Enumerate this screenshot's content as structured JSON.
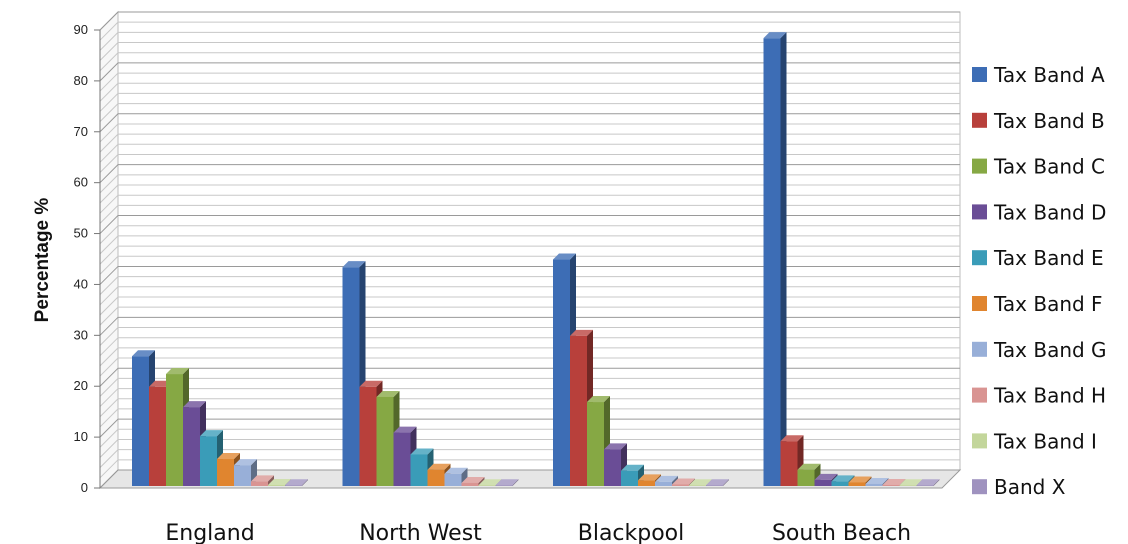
{
  "chart_data": {
    "type": "bar",
    "ylabel": "Percentage %",
    "ylim": [
      0,
      90
    ],
    "yticks": [
      0,
      10,
      20,
      30,
      40,
      50,
      60,
      70,
      80,
      90
    ],
    "grid": true,
    "legend_position": "right",
    "categories": [
      "England",
      "North West",
      "Blackpool",
      "South Beach"
    ],
    "series": [
      {
        "name": "Tax Band A",
        "color": "#3d6db5",
        "values": [
          25.5,
          43,
          44.5,
          88
        ]
      },
      {
        "name": "Tax Band B",
        "color": "#b8403b",
        "values": [
          19.5,
          19.5,
          29.5,
          8.8
        ]
      },
      {
        "name": "Tax Band C",
        "color": "#86a844",
        "values": [
          22,
          17.5,
          16.5,
          3.2
        ]
      },
      {
        "name": "Tax Band D",
        "color": "#6a4d96",
        "values": [
          15.5,
          10.5,
          7.2,
          1.2
        ]
      },
      {
        "name": "Tax Band E",
        "color": "#3a9cb8",
        "values": [
          9.8,
          6.2,
          3.0,
          0.9
        ]
      },
      {
        "name": "Tax Band F",
        "color": "#e0852f",
        "values": [
          5.3,
          3.2,
          1.1,
          0.7
        ]
      },
      {
        "name": "Tax Band G",
        "color": "#98afd8",
        "values": [
          4.1,
          2.4,
          0.8,
          0.4
        ]
      },
      {
        "name": "Tax Band H",
        "color": "#d99492",
        "values": [
          0.9,
          0.6,
          0.3,
          0.2
        ]
      },
      {
        "name": "Tax Band I",
        "color": "#c3d69b",
        "values": [
          0.2,
          0.1,
          0.1,
          0.1
        ]
      },
      {
        "name": "Band X",
        "color": "#9f92bf",
        "values": [
          0.1,
          0.1,
          0.1,
          0.1
        ]
      }
    ]
  }
}
